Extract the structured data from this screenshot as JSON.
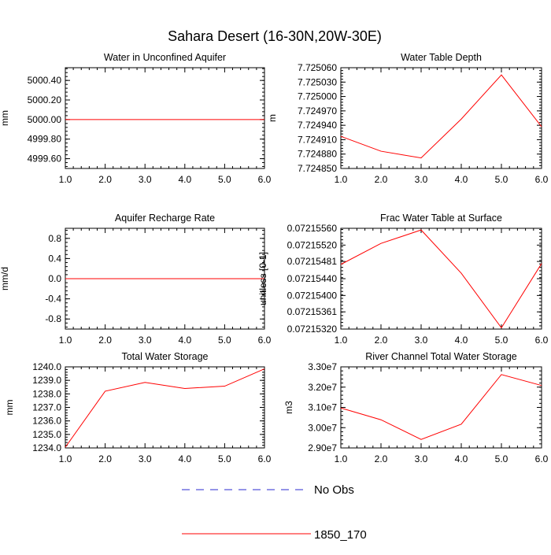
{
  "title": "Sahara Desert (16-30N,20W-30E)",
  "colors": {
    "series": "#ff0000",
    "obs": "#2a2ad0",
    "frame": "#000000"
  },
  "legend": [
    {
      "label": "No Obs",
      "style": "dashed",
      "color": "#2a2ad0"
    },
    {
      "label": "1850_170",
      "style": "solid",
      "color": "#ff0000"
    }
  ],
  "chart_data": [
    {
      "type": "line",
      "title": "Water in Unconfined Aquifer",
      "ylabel": "mm",
      "xlim": [
        1,
        6
      ],
      "xticks": [
        "1.0",
        "2.0",
        "3.0",
        "4.0",
        "5.0",
        "6.0"
      ],
      "ylim": [
        4999.5,
        5000.53
      ],
      "yticks": [
        {
          "v": 4999.6,
          "label": "4999.60"
        },
        {
          "v": 4999.8,
          "label": "4999.80"
        },
        {
          "v": 5000.0,
          "label": "5000.00"
        },
        {
          "v": 5000.2,
          "label": "5000.20"
        },
        {
          "v": 5000.4,
          "label": "5000.40"
        }
      ],
      "series": [
        {
          "x": [
            1,
            2,
            3,
            4,
            5,
            6
          ],
          "y": [
            5000.0,
            5000.0,
            5000.0,
            5000.0,
            5000.0,
            5000.0
          ]
        }
      ]
    },
    {
      "type": "line",
      "title": "Water Table Depth",
      "ylabel": "m",
      "xlim": [
        1,
        6
      ],
      "xticks": [
        "1.0",
        "2.0",
        "3.0",
        "4.0",
        "5.0",
        "6.0"
      ],
      "ylim": [
        7.72485,
        7.72506
      ],
      "yticks": [
        {
          "v": 7.72485,
          "label": "7.724850"
        },
        {
          "v": 7.72488,
          "label": "7.724880"
        },
        {
          "v": 7.72491,
          "label": "7.724910"
        },
        {
          "v": 7.72494,
          "label": "7.724940"
        },
        {
          "v": 7.72497,
          "label": "7.724970"
        },
        {
          "v": 7.725,
          "label": "7.725000"
        },
        {
          "v": 7.72503,
          "label": "7.725030"
        },
        {
          "v": 7.72506,
          "label": "7.725060"
        }
      ],
      "series": [
        {
          "x": [
            1,
            2,
            3,
            4,
            5,
            6
          ],
          "y": [
            7.724917,
            7.724886,
            7.724872,
            7.724953,
            7.725045,
            7.724937
          ]
        }
      ]
    },
    {
      "type": "line",
      "title": "Aquifer Recharge Rate",
      "ylabel": "mm/d",
      "xlim": [
        1,
        6
      ],
      "xticks": [
        "1.0",
        "2.0",
        "3.0",
        "4.0",
        "5.0",
        "6.0"
      ],
      "ylim": [
        -1.0,
        1.0
      ],
      "yticks": [
        {
          "v": -0.8,
          "label": "-0.8"
        },
        {
          "v": -0.4,
          "label": "-0.4"
        },
        {
          "v": 0.0,
          "label": "0.0"
        },
        {
          "v": 0.4,
          "label": "0.4"
        },
        {
          "v": 0.8,
          "label": "0.8"
        }
      ],
      "series": [
        {
          "x": [
            1,
            2,
            3,
            4,
            5,
            6
          ],
          "y": [
            0,
            0,
            0,
            0,
            0,
            0
          ]
        }
      ]
    },
    {
      "type": "line",
      "title": "Frac Water Table at Surface",
      "ylabel": "unitless [0-1]",
      "xlim": [
        1,
        6
      ],
      "xticks": [
        "1.0",
        "2.0",
        "3.0",
        "4.0",
        "5.0",
        "6.0"
      ],
      "ylim": [
        0.0721532,
        0.0721556
      ],
      "yticks": [
        {
          "v": 0.0721532,
          "label": "0.07215320"
        },
        {
          "v": 0.07215361,
          "label": "0.07215361"
        },
        {
          "v": 0.072154,
          "label": "0.07215400"
        },
        {
          "v": 0.0721544,
          "label": "0.07215440"
        },
        {
          "v": 0.07215481,
          "label": "0.07215481"
        },
        {
          "v": 0.0721552,
          "label": "0.07215520"
        },
        {
          "v": 0.0721556,
          "label": "0.07215560"
        }
      ],
      "series": [
        {
          "x": [
            1,
            2,
            3,
            4,
            5,
            6
          ],
          "y": [
            0.07215474,
            0.07215524,
            0.07215556,
            0.07215453,
            0.07215323,
            0.07215476
          ]
        }
      ]
    },
    {
      "type": "line",
      "title": "Total Water Storage",
      "ylabel": "mm",
      "xlim": [
        1,
        6
      ],
      "xticks": [
        "1.0",
        "2.0",
        "3.0",
        "4.0",
        "5.0",
        "6.0"
      ],
      "ylim": [
        1234.0,
        1240.0
      ],
      "yticks": [
        {
          "v": 1234.0,
          "label": "1234.0"
        },
        {
          "v": 1235.0,
          "label": "1235.0"
        },
        {
          "v": 1236.0,
          "label": "1236.0"
        },
        {
          "v": 1237.0,
          "label": "1237.0"
        },
        {
          "v": 1238.0,
          "label": "1238.0"
        },
        {
          "v": 1239.0,
          "label": "1239.0"
        },
        {
          "v": 1240.0,
          "label": "1240.0"
        }
      ],
      "series": [
        {
          "x": [
            1,
            2,
            3,
            4,
            5,
            6
          ],
          "y": [
            1234.05,
            1238.2,
            1238.85,
            1238.4,
            1238.57,
            1239.85
          ]
        }
      ]
    },
    {
      "type": "line",
      "title": "River Channel Total Water Storage",
      "ylabel": "m3",
      "xlim": [
        1,
        6
      ],
      "xticks": [
        "1.0",
        "2.0",
        "3.0",
        "4.0",
        "5.0",
        "6.0"
      ],
      "ylim": [
        29000000,
        33000000
      ],
      "yticks": [
        {
          "v": 29000000,
          "label": "2.90e7"
        },
        {
          "v": 30000000,
          "label": "3.00e7"
        },
        {
          "v": 31000000,
          "label": "3.10e7"
        },
        {
          "v": 32000000,
          "label": "3.20e7"
        },
        {
          "v": 33000000,
          "label": "3.30e7"
        }
      ],
      "series": [
        {
          "x": [
            1,
            2,
            3,
            4,
            5,
            6
          ],
          "y": [
            30970000,
            30390000,
            29420000,
            30170000,
            32620000,
            32080000
          ]
        }
      ]
    }
  ]
}
